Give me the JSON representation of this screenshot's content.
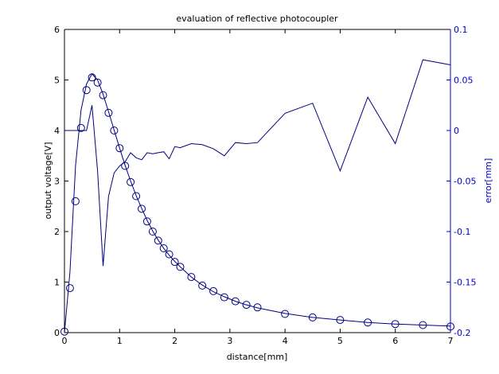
{
  "chart_data": {
    "type": "line",
    "title": "evaluation of reflective photocoupler",
    "xlabel": "distance[mm]",
    "ylabel": "output voltage[V]",
    "y2label": "error[mm]",
    "xlim": [
      0,
      7
    ],
    "ylim": [
      0,
      6
    ],
    "y2lim": [
      -0.2,
      0.1
    ],
    "xticks": [
      "0",
      "1",
      "2",
      "3",
      "4",
      "5",
      "6",
      "7"
    ],
    "yticks": [
      "0",
      "1",
      "2",
      "3",
      "4",
      "5",
      "6"
    ],
    "y2ticks": [
      "-0.2",
      "-0.15",
      "-0.1",
      "-0.05",
      "0",
      "0.05",
      "0.1"
    ],
    "grid": false,
    "colors": {
      "left_axis": "#000000",
      "right_axis": "#0000cc",
      "series": "#000080"
    },
    "series": [
      {
        "axis": "left",
        "style": "markers",
        "marker": "circle",
        "x": [
          0,
          0.1,
          0.2,
          0.3,
          0.4,
          0.5,
          0.6,
          0.7,
          0.8,
          0.9,
          1.0,
          1.1,
          1.2,
          1.3,
          1.4,
          1.5,
          1.6,
          1.7,
          1.8,
          1.9,
          2.0,
          2.1,
          2.3,
          2.5,
          2.7,
          2.9,
          3.1,
          3.3,
          3.5,
          4.0,
          4.5,
          5.0,
          5.5,
          6.0,
          6.5,
          7.0
        ],
        "y": [
          0.02,
          0.88,
          2.6,
          4.05,
          4.8,
          5.05,
          4.95,
          4.7,
          4.35,
          4.0,
          3.65,
          3.3,
          2.98,
          2.7,
          2.45,
          2.2,
          2.0,
          1.82,
          1.67,
          1.55,
          1.4,
          1.3,
          1.1,
          0.93,
          0.82,
          0.7,
          0.62,
          0.55,
          0.5,
          0.37,
          0.3,
          0.25,
          0.2,
          0.17,
          0.15,
          0.12
        ]
      },
      {
        "axis": "left",
        "style": "line",
        "x": [
          0,
          0.1,
          0.2,
          0.3,
          0.4,
          0.5,
          0.6,
          0.7,
          0.8,
          0.9,
          1.0,
          1.1,
          1.2,
          1.3,
          1.4,
          1.5,
          1.6,
          1.7,
          1.8,
          1.9,
          2.0,
          2.1,
          2.3,
          2.5,
          2.7,
          2.9,
          3.1,
          3.3,
          3.5,
          4.0,
          4.5,
          5.0,
          5.5,
          6.0,
          6.5,
          7.0
        ],
        "y": [
          0.0,
          1.2,
          3.3,
          4.4,
          4.92,
          5.12,
          5.0,
          4.72,
          4.37,
          4.01,
          3.65,
          3.31,
          3.0,
          2.71,
          2.46,
          2.22,
          2.01,
          1.83,
          1.67,
          1.53,
          1.41,
          1.3,
          1.1,
          0.94,
          0.81,
          0.71,
          0.62,
          0.55,
          0.49,
          0.38,
          0.3,
          0.25,
          0.2,
          0.17,
          0.15,
          0.13
        ]
      },
      {
        "axis": "right",
        "style": "line",
        "x": [
          0,
          0.1,
          0.2,
          0.3,
          0.4,
          0.5,
          0.6,
          0.7,
          0.8,
          0.9,
          1.0,
          1.1,
          1.2,
          1.3,
          1.4,
          1.5,
          1.6,
          1.7,
          1.8,
          1.9,
          2.0,
          2.1,
          2.3,
          2.5,
          2.7,
          2.9,
          3.1,
          3.3,
          3.5,
          4.0,
          4.5,
          5.0,
          5.5,
          6.0,
          6.5,
          7.0
        ],
        "y": [
          0,
          0,
          0,
          0,
          0,
          0.025,
          -0.04,
          -0.134,
          -0.065,
          -0.042,
          -0.035,
          -0.031,
          -0.022,
          -0.027,
          -0.029,
          -0.022,
          -0.023,
          -0.022,
          -0.021,
          -0.028,
          -0.016,
          -0.017,
          -0.013,
          -0.014,
          -0.018,
          -0.025,
          -0.012,
          -0.013,
          -0.012,
          0.017,
          0.027,
          -0.04,
          0.033,
          -0.013,
          0.07,
          0.065
        ]
      }
    ]
  }
}
